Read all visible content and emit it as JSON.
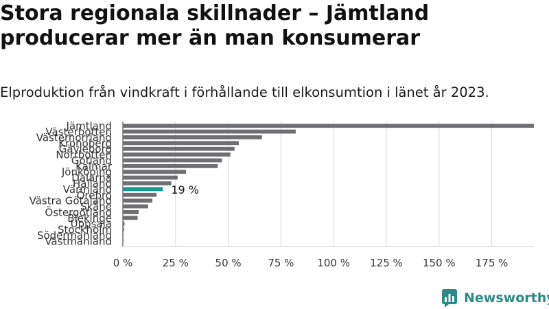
{
  "header": {
    "title": "Stora regionala skillnader – Jämtland producerar mer än man konsumerar",
    "subtitle": "Elproduktion från vindkraft i förhållande till elkonsumtion i länet år 2023."
  },
  "chart_data": {
    "type": "bar",
    "orientation": "horizontal",
    "categories": [
      "Jämtland",
      "Västerbotten",
      "Västernorrland",
      "Kronoberg",
      "Gävleborg",
      "Norrbotten",
      "Gotland",
      "Kalmar",
      "Jönköping",
      "Dalarna",
      "Halland",
      "Värmland",
      "Örebro",
      "Västra Götaland",
      "Skåne",
      "Östergötland",
      "Blekinge",
      "Uppsala",
      "Stockholm",
      "Södermanland",
      "Västmanland"
    ],
    "values": [
      195,
      82,
      66,
      55,
      53,
      51,
      47,
      45,
      30,
      26,
      23,
      19,
      16,
      14,
      12,
      7.5,
      7,
      0.8,
      0.6,
      0.3,
      0.2
    ],
    "highlight": {
      "category": "Värmland",
      "label": "19 %"
    },
    "xlim": [
      0,
      195
    ],
    "xticks": [
      "0 %",
      "25 %",
      "50 %",
      "75 %",
      "100 %",
      "125 %",
      "150 %",
      "175 %"
    ],
    "xtick_values": [
      0,
      25,
      50,
      75,
      100,
      125,
      150,
      175
    ],
    "grid": true,
    "colors": {
      "bar": "#6e6e73",
      "highlight": "#16998f",
      "grid": "#d9d9d9",
      "axis": "#333333"
    }
  },
  "brand": {
    "name": "Newsworthy",
    "color": "#2a8a86"
  }
}
